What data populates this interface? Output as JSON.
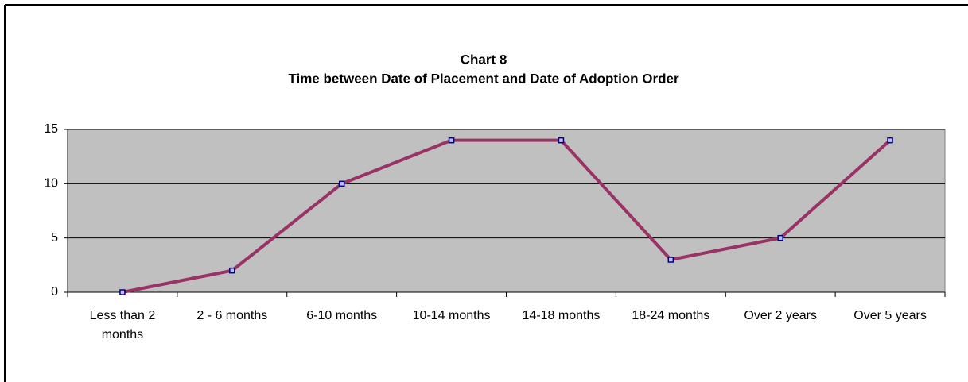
{
  "chart_data": {
    "type": "line",
    "title": "Chart 8",
    "subtitle": "Time between Date of Placement and Date of Adoption Order",
    "categories": [
      "Less than 2 months",
      "2 - 6 months",
      "6-10 months",
      "10-14 months",
      "14-18 months",
      "18-24 months",
      "Over 2 years",
      "Over 5 years"
    ],
    "values": [
      0,
      2,
      10,
      14,
      14,
      3,
      5,
      14
    ],
    "color": "#993366",
    "marker_color": "#000080",
    "plot_background": "#c0c0c0",
    "ylim": [
      0,
      15
    ],
    "yticks": [
      0,
      5,
      10,
      15
    ],
    "grid": true
  }
}
